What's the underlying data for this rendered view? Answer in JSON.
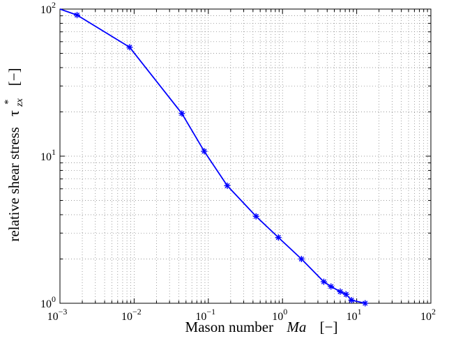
{
  "chart_data": {
    "type": "line",
    "title": "",
    "xlabel": "Mason number",
    "xlabel_symbol": "Ma",
    "xlabel_unit": "[−]",
    "ylabel": "relative shear stress",
    "ylabel_symbol": "τ",
    "ylabel_symbol_sup": "*",
    "ylabel_symbol_sub": "zx",
    "ylabel_unit": "[−]",
    "xscale": "log",
    "yscale": "log",
    "xlim": [
      0.001,
      100
    ],
    "ylim": [
      1,
      100
    ],
    "grid": true,
    "x_ticks": [
      {
        "value": 0.001,
        "mantissa": "10",
        "exp": "−3"
      },
      {
        "value": 0.01,
        "mantissa": "10",
        "exp": "−2"
      },
      {
        "value": 0.1,
        "mantissa": "10",
        "exp": "−1"
      },
      {
        "value": 1,
        "mantissa": "10",
        "exp": "0"
      },
      {
        "value": 10,
        "mantissa": "10",
        "exp": "1"
      },
      {
        "value": 100,
        "mantissa": "10",
        "exp": "2"
      }
    ],
    "y_ticks": [
      {
        "value": 1,
        "mantissa": "10",
        "exp": "0"
      },
      {
        "value": 10,
        "mantissa": "10",
        "exp": "1"
      },
      {
        "value": 100,
        "mantissa": "10",
        "exp": "2"
      }
    ],
    "line_color": "#0000ff",
    "marker": "asterisk",
    "series": [
      {
        "x": [
          0.001,
          0.0017,
          0.0087,
          0.044,
          0.088,
          0.18,
          0.44,
          0.88,
          1.8,
          3.6,
          4.5,
          6.0,
          7.2,
          8.5,
          13
        ],
        "y": [
          100,
          91,
          55,
          19.5,
          10.8,
          6.3,
          3.9,
          2.8,
          2.0,
          1.4,
          1.3,
          1.2,
          1.15,
          1.05,
          1.0
        ]
      }
    ]
  }
}
